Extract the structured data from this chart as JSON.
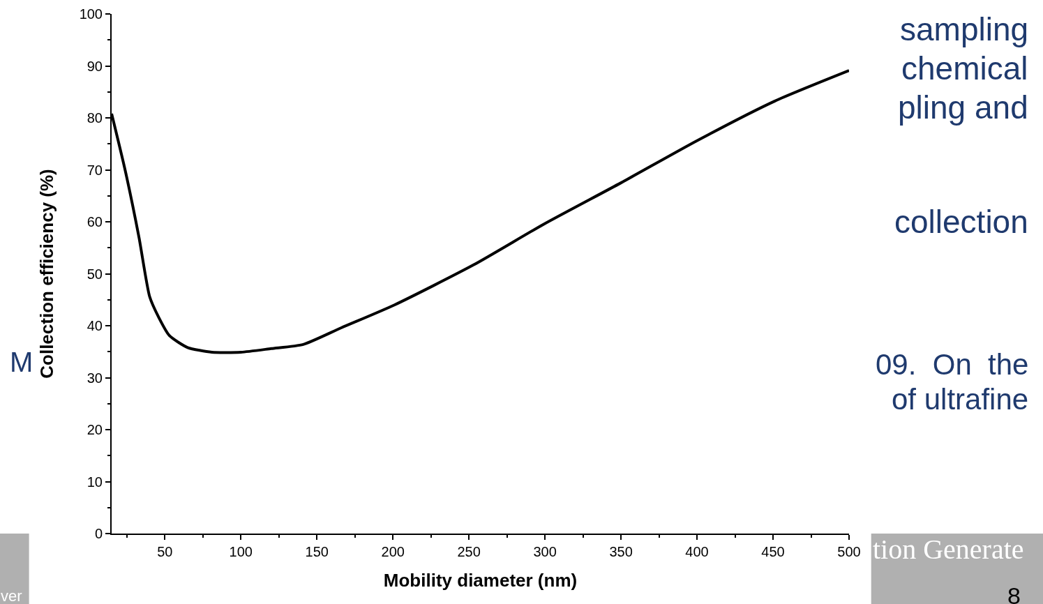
{
  "chart_data": {
    "type": "line",
    "xlabel": "Mobility diameter (nm)",
    "ylabel": "Collection efficiency (%)",
    "x": [
      15,
      24,
      33,
      40,
      46,
      53,
      65,
      81,
      100,
      120,
      141,
      166,
      201,
      253,
      299,
      350,
      400,
      451,
      500
    ],
    "series": [
      {
        "color": "#000000",
        "values": [
          80.8,
          69.8,
          57,
          45.6,
          41.6,
          38.1,
          35.8,
          34.9,
          34.9,
          35.6,
          36.4,
          39.6,
          44,
          51.7,
          59.5,
          67.5,
          75.6,
          83.2,
          89.1
        ]
      }
    ],
    "xlim": [
      15,
      500
    ],
    "xticks": [
      50,
      100,
      150,
      200,
      250,
      300,
      350,
      400,
      450,
      500
    ],
    "ylim": [
      0,
      100
    ],
    "yticks": [
      0,
      10,
      20,
      30,
      40,
      50,
      60,
      70,
      80,
      90,
      100
    ],
    "grid": false,
    "marker": "none",
    "line_style": "solid",
    "annotations": [
      "sampling",
      "chemical",
      "pling and",
      "collection",
      "09.  On  the",
      "of ultrafine",
      "tion Generate",
      "8",
      "M",
      "ver"
    ]
  }
}
